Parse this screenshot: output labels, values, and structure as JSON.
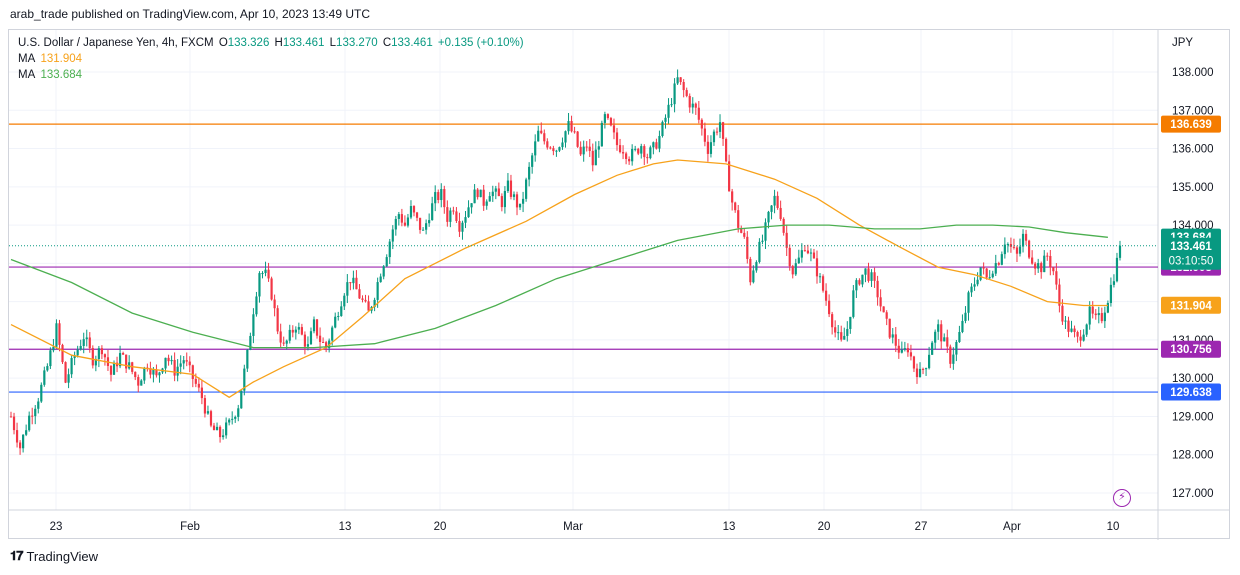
{
  "publisher": "arab_trade published on TradingView.com, Apr 10, 2023 13:49 UTC",
  "legend": {
    "symbol": "U.S. Dollar / Japanese Yen, 4h, FXCM",
    "o_label": "O",
    "o": "133.326",
    "h_label": "H",
    "h": "133.461",
    "l_label": "L",
    "l": "133.270",
    "c_label": "C",
    "c": "133.461",
    "change": "+0.135 (+0.10%)",
    "ma1_label": "MA",
    "ma1": "131.904",
    "ma2_label": "MA",
    "ma2": "133.684"
  },
  "currency": "JPY",
  "footer": {
    "brand": "TradingView"
  },
  "colors": {
    "up": "#089981",
    "down": "#f23645",
    "ma_fast": "#f7a21b",
    "ma_slow": "#4caf50",
    "level_orange": "#f57c00",
    "level_purple": "#9c27b0",
    "level_blue": "#2962ff"
  },
  "chart_data": {
    "type": "candlestick",
    "y_ticks": [
      "138.000",
      "137.000",
      "136.000",
      "135.000",
      "134.000",
      "133.000",
      "132.000",
      "131.000",
      "130.000",
      "129.000",
      "128.000",
      "127.000"
    ],
    "y_range": [
      126.9,
      138.85
    ],
    "x_ticks": [
      "23",
      "Feb",
      "13",
      "20",
      "Mar",
      "13",
      "20",
      "27",
      "Apr",
      "10"
    ],
    "horizontal_levels": [
      {
        "value": 136.639,
        "label": "136.639",
        "color": "#f57c00"
      },
      {
        "value": 132.903,
        "label": "132.903",
        "color": "#9c27b0"
      },
      {
        "value": 130.756,
        "label": "130.756",
        "color": "#9c27b0"
      },
      {
        "value": 129.638,
        "label": "129.638",
        "color": "#2962ff"
      }
    ],
    "price_tags": [
      {
        "value": 133.684,
        "label": "133.684",
        "color": "#089981"
      },
      {
        "value": 133.461,
        "label": "133.461",
        "sub": "03:10:50",
        "color": "#089981"
      },
      {
        "value": 131.904,
        "label": "131.904",
        "color": "#f7a21b"
      }
    ],
    "path_points": [
      [
        0,
        129.0
      ],
      [
        3,
        128.2
      ],
      [
        6,
        129.0
      ],
      [
        9,
        129.5
      ],
      [
        12,
        130.3
      ],
      [
        15,
        131.3
      ],
      [
        18,
        129.9
      ],
      [
        21,
        130.6
      ],
      [
        24,
        131.1
      ],
      [
        27,
        130.5
      ],
      [
        30,
        130.8
      ],
      [
        33,
        130.1
      ],
      [
        36,
        130.6
      ],
      [
        39,
        130.3
      ],
      [
        42,
        129.9
      ],
      [
        45,
        130.4
      ],
      [
        48,
        130.0
      ],
      [
        51,
        130.6
      ],
      [
        54,
        130.2
      ],
      [
        57,
        130.5
      ],
      [
        60,
        130.0
      ],
      [
        63,
        129.5
      ],
      [
        66,
        128.7
      ],
      [
        69,
        128.5
      ],
      [
        72,
        128.8
      ],
      [
        75,
        129.3
      ],
      [
        78,
        130.6
      ],
      [
        80,
        131.8
      ],
      [
        82,
        132.8
      ],
      [
        84,
        132.7
      ],
      [
        86,
        132.2
      ],
      [
        88,
        131.3
      ],
      [
        90,
        130.8
      ],
      [
        92,
        131.1
      ],
      [
        94,
        131.4
      ],
      [
        96,
        131.1
      ],
      [
        98,
        130.8
      ],
      [
        100,
        131.4
      ],
      [
        102,
        131.0
      ],
      [
        104,
        130.8
      ],
      [
        106,
        131.3
      ],
      [
        108,
        131.8
      ],
      [
        110,
        132.3
      ],
      [
        112,
        132.6
      ],
      [
        114,
        132.3
      ],
      [
        116,
        132.0
      ],
      [
        118,
        131.7
      ],
      [
        120,
        132.2
      ],
      [
        122,
        132.8
      ],
      [
        124,
        133.3
      ],
      [
        126,
        133.9
      ],
      [
        128,
        134.3
      ],
      [
        130,
        134.0
      ],
      [
        132,
        134.4
      ],
      [
        134,
        134.1
      ],
      [
        136,
        133.8
      ],
      [
        138,
        134.3
      ],
      [
        140,
        134.7
      ],
      [
        142,
        134.8
      ],
      [
        144,
        134.2
      ],
      [
        146,
        134.5
      ],
      [
        148,
        134.0
      ],
      [
        150,
        134.3
      ],
      [
        152,
        134.7
      ],
      [
        154,
        134.9
      ],
      [
        156,
        134.6
      ],
      [
        158,
        134.9
      ],
      [
        160,
        134.8
      ],
      [
        162,
        134.6
      ],
      [
        164,
        135.0
      ],
      [
        166,
        134.7
      ],
      [
        168,
        134.4
      ],
      [
        170,
        135.1
      ],
      [
        172,
        135.8
      ],
      [
        174,
        136.4
      ],
      [
        176,
        136.2
      ],
      [
        178,
        136.1
      ],
      [
        180,
        136.0
      ],
      [
        182,
        136.3
      ],
      [
        184,
        136.6
      ],
      [
        186,
        136.3
      ],
      [
        188,
        135.8
      ],
      [
        190,
        136.1
      ],
      [
        192,
        135.6
      ],
      [
        194,
        136.2
      ],
      [
        196,
        136.8
      ],
      [
        198,
        136.5
      ],
      [
        200,
        136.1
      ],
      [
        202,
        136.0
      ],
      [
        204,
        135.8
      ],
      [
        206,
        135.9
      ],
      [
        208,
        136.1
      ],
      [
        210,
        135.8
      ],
      [
        212,
        136.0
      ],
      [
        214,
        136.3
      ],
      [
        216,
        136.8
      ],
      [
        218,
        137.3
      ],
      [
        220,
        137.8
      ],
      [
        222,
        137.5
      ],
      [
        224,
        137.2
      ],
      [
        226,
        137.0
      ],
      [
        228,
        136.5
      ],
      [
        230,
        136.0
      ],
      [
        232,
        136.4
      ],
      [
        234,
        136.7
      ],
      [
        236,
        135.5
      ],
      [
        238,
        134.6
      ],
      [
        240,
        134.0
      ],
      [
        242,
        133.6
      ],
      [
        244,
        132.6
      ],
      [
        246,
        133.2
      ],
      [
        248,
        133.6
      ],
      [
        250,
        134.2
      ],
      [
        252,
        134.7
      ],
      [
        254,
        134.3
      ],
      [
        256,
        133.4
      ],
      [
        258,
        132.8
      ],
      [
        260,
        133.1
      ],
      [
        262,
        133.5
      ],
      [
        264,
        133.2
      ],
      [
        266,
        132.8
      ],
      [
        268,
        132.3
      ],
      [
        270,
        131.8
      ],
      [
        272,
        131.2
      ],
      [
        274,
        130.9
      ],
      [
        276,
        131.3
      ],
      [
        278,
        132.2
      ],
      [
        280,
        132.6
      ],
      [
        282,
        132.8
      ],
      [
        284,
        132.6
      ],
      [
        286,
        132.2
      ],
      [
        288,
        131.6
      ],
      [
        290,
        131.2
      ],
      [
        292,
        130.9
      ],
      [
        294,
        130.6
      ],
      [
        296,
        130.8
      ],
      [
        298,
        130.3
      ],
      [
        300,
        130.1
      ],
      [
        302,
        130.4
      ],
      [
        304,
        131.0
      ],
      [
        306,
        131.3
      ],
      [
        308,
        130.9
      ],
      [
        310,
        130.5
      ],
      [
        312,
        130.9
      ],
      [
        314,
        131.4
      ],
      [
        316,
        132.1
      ],
      [
        318,
        132.5
      ],
      [
        320,
        132.9
      ],
      [
        322,
        132.6
      ],
      [
        324,
        132.9
      ],
      [
        326,
        133.1
      ],
      [
        328,
        133.6
      ],
      [
        330,
        133.4
      ],
      [
        332,
        133.2
      ],
      [
        334,
        133.7
      ],
      [
        336,
        133.3
      ],
      [
        338,
        133.0
      ],
      [
        340,
        132.9
      ],
      [
        342,
        133.2
      ],
      [
        344,
        132.8
      ],
      [
        346,
        131.9
      ],
      [
        348,
        131.4
      ],
      [
        350,
        131.2
      ],
      [
        352,
        131.0
      ],
      [
        354,
        131.3
      ],
      [
        356,
        131.7
      ],
      [
        358,
        131.5
      ],
      [
        360,
        131.6
      ],
      [
        362,
        132.1
      ],
      [
        364,
        132.7
      ],
      [
        366,
        133.4
      ]
    ],
    "ma_fast_points": [
      [
        0,
        131.4
      ],
      [
        20,
        130.6
      ],
      [
        40,
        130.3
      ],
      [
        60,
        130.1
      ],
      [
        72,
        129.5
      ],
      [
        80,
        129.9
      ],
      [
        90,
        130.3
      ],
      [
        104,
        130.8
      ],
      [
        116,
        131.6
      ],
      [
        130,
        132.6
      ],
      [
        150,
        133.4
      ],
      [
        170,
        134.1
      ],
      [
        186,
        134.8
      ],
      [
        200,
        135.3
      ],
      [
        212,
        135.6
      ],
      [
        220,
        135.7
      ],
      [
        236,
        135.6
      ],
      [
        252,
        135.2
      ],
      [
        266,
        134.7
      ],
      [
        280,
        134.0
      ],
      [
        294,
        133.4
      ],
      [
        306,
        132.9
      ],
      [
        318,
        132.7
      ],
      [
        330,
        132.4
      ],
      [
        342,
        132.0
      ],
      [
        354,
        131.9
      ],
      [
        362,
        131.9
      ]
    ],
    "ma_slow_points": [
      [
        0,
        133.1
      ],
      [
        20,
        132.5
      ],
      [
        40,
        131.7
      ],
      [
        60,
        131.2
      ],
      [
        80,
        130.8
      ],
      [
        100,
        130.8
      ],
      [
        120,
        130.9
      ],
      [
        140,
        131.3
      ],
      [
        160,
        131.9
      ],
      [
        180,
        132.6
      ],
      [
        200,
        133.1
      ],
      [
        220,
        133.6
      ],
      [
        240,
        133.9
      ],
      [
        256,
        134.0
      ],
      [
        270,
        134.0
      ],
      [
        285,
        133.9
      ],
      [
        300,
        133.9
      ],
      [
        312,
        134.0
      ],
      [
        324,
        134.0
      ],
      [
        336,
        133.95
      ],
      [
        348,
        133.8
      ],
      [
        362,
        133.68
      ]
    ]
  }
}
